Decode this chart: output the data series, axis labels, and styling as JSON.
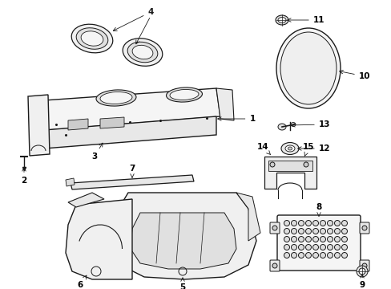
{
  "bg_color": "#ffffff",
  "line_color": "#1a1a1a",
  "label_color": "#000000",
  "lw": 0.7,
  "font_size": 7.5
}
